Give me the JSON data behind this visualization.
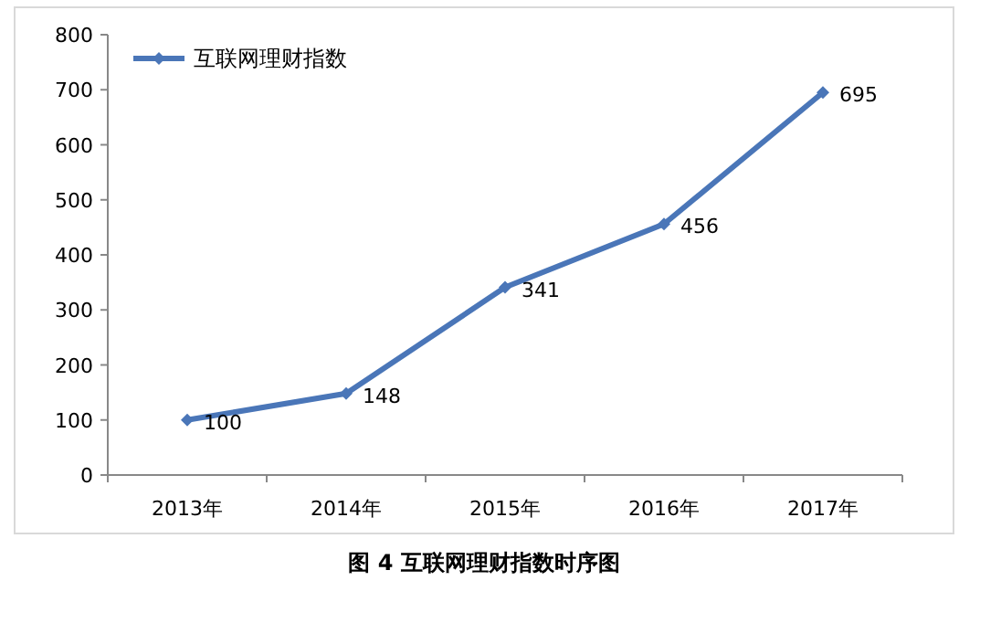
{
  "chart_data": {
    "type": "line",
    "categories": [
      "2013年",
      "2014年",
      "2015年",
      "2016年",
      "2017年"
    ],
    "series": [
      {
        "name": "互联网理财指数",
        "color": "#4a76b8",
        "values": [
          100,
          148,
          341,
          456,
          695
        ]
      }
    ],
    "ylim": [
      0,
      800
    ],
    "yticks": [
      0,
      100,
      200,
      300,
      400,
      500,
      600,
      700,
      800
    ],
    "data_labels": true,
    "legend": "top left",
    "marker": "diamond",
    "line_style": "solid",
    "grid": false,
    "annotations": [
      "图 4 互联网理财指数时序图"
    ]
  }
}
